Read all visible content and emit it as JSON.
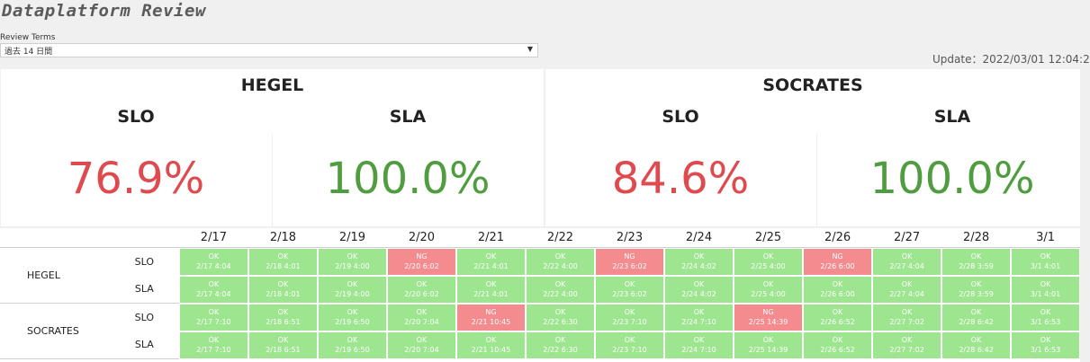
{
  "header": {
    "title": "Dataplatform Review",
    "terms_label": "Review Terms",
    "terms_value": "過去 14 日間",
    "update": "Update：2022/03/01 12:04:2"
  },
  "colors": {
    "ok": "#9de58f",
    "ng": "#f48b8f",
    "bad_value": "#df4a4f",
    "good_value": "#4f9d3f"
  },
  "panels": [
    {
      "name": "HEGEL",
      "slo_label": "SLO",
      "slo_value": "76.9%",
      "sla_label": "SLA",
      "sla_value": "100.0%"
    },
    {
      "name": "SOCRATES",
      "slo_label": "SLO",
      "slo_value": "84.6%",
      "sla_label": "SLA",
      "sla_value": "100.0%"
    }
  ],
  "dates": [
    "2/17",
    "2/18",
    "2/19",
    "2/20",
    "2/21",
    "2/22",
    "2/23",
    "2/24",
    "2/25",
    "2/26",
    "2/27",
    "2/28",
    "3/1"
  ],
  "rows": [
    {
      "system": "HEGEL",
      "type": "SLO",
      "cells": [
        {
          "status": "OK",
          "time": "2/17 4:04"
        },
        {
          "status": "OK",
          "time": "2/18 4:01"
        },
        {
          "status": "OK",
          "time": "2/19 4:00"
        },
        {
          "status": "NG",
          "time": "2/20 6:02"
        },
        {
          "status": "OK",
          "time": "2/21 4:01"
        },
        {
          "status": "OK",
          "time": "2/22 4:00"
        },
        {
          "status": "NG",
          "time": "2/23 6:02"
        },
        {
          "status": "OK",
          "time": "2/24 4:02"
        },
        {
          "status": "OK",
          "time": "2/25 4:00"
        },
        {
          "status": "NG",
          "time": "2/26 6:00"
        },
        {
          "status": "OK",
          "time": "2/27 4:04"
        },
        {
          "status": "OK",
          "time": "2/28 3:59"
        },
        {
          "status": "OK",
          "time": "3/1 4:01"
        }
      ]
    },
    {
      "system": "",
      "type": "SLA",
      "cells": [
        {
          "status": "OK",
          "time": "2/17 4:04"
        },
        {
          "status": "OK",
          "time": "2/18 4:01"
        },
        {
          "status": "OK",
          "time": "2/19 4:00"
        },
        {
          "status": "OK",
          "time": "2/20 6:02"
        },
        {
          "status": "OK",
          "time": "2/21 4:01"
        },
        {
          "status": "OK",
          "time": "2/22 4:00"
        },
        {
          "status": "OK",
          "time": "2/23 6:02"
        },
        {
          "status": "OK",
          "time": "2/24 4:02"
        },
        {
          "status": "OK",
          "time": "2/25 4:00"
        },
        {
          "status": "OK",
          "time": "2/26 6:00"
        },
        {
          "status": "OK",
          "time": "2/27 4:04"
        },
        {
          "status": "OK",
          "time": "2/28 3:59"
        },
        {
          "status": "OK",
          "time": "3/1 4:01"
        }
      ]
    },
    {
      "system": "SOCRATES",
      "type": "SLO",
      "cells": [
        {
          "status": "OK",
          "time": "2/17 7:10"
        },
        {
          "status": "OK",
          "time": "2/18 6:51"
        },
        {
          "status": "OK",
          "time": "2/19 6:50"
        },
        {
          "status": "OK",
          "time": "2/20 7:04"
        },
        {
          "status": "NG",
          "time": "2/21 10:45"
        },
        {
          "status": "OK",
          "time": "2/22 6:30"
        },
        {
          "status": "OK",
          "time": "2/23 7:10"
        },
        {
          "status": "OK",
          "time": "2/24 7:10"
        },
        {
          "status": "NG",
          "time": "2/25 14:39"
        },
        {
          "status": "OK",
          "time": "2/26 6:52"
        },
        {
          "status": "OK",
          "time": "2/27 7:02"
        },
        {
          "status": "OK",
          "time": "2/28 6:42"
        },
        {
          "status": "OK",
          "time": "3/1 6:53"
        }
      ]
    },
    {
      "system": "",
      "type": "SLA",
      "cells": [
        {
          "status": "OK",
          "time": "2/17 7:10"
        },
        {
          "status": "OK",
          "time": "2/18 6:51"
        },
        {
          "status": "OK",
          "time": "2/19 6:50"
        },
        {
          "status": "OK",
          "time": "2/20 7:04"
        },
        {
          "status": "OK",
          "time": "2/21 10:45"
        },
        {
          "status": "OK",
          "time": "2/22 6:30"
        },
        {
          "status": "OK",
          "time": "2/23 7:10"
        },
        {
          "status": "OK",
          "time": "2/24 7:10"
        },
        {
          "status": "OK",
          "time": "2/25 14:39"
        },
        {
          "status": "OK",
          "time": "2/26 6:52"
        },
        {
          "status": "OK",
          "time": "2/27 7:02"
        },
        {
          "status": "OK",
          "time": "2/28 6:42"
        },
        {
          "status": "OK",
          "time": "3/1 6:53"
        }
      ]
    }
  ]
}
